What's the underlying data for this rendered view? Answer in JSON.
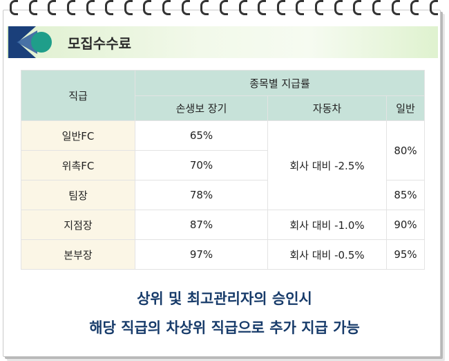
{
  "banner": {
    "title": "모집수수료"
  },
  "table": {
    "header": {
      "position": "직급",
      "group": "종목별 지급률",
      "col_life": "손생보 장기",
      "col_auto": "자동차",
      "col_general": "일반"
    },
    "rows": [
      {
        "position": "일반FC",
        "life": "65%"
      },
      {
        "position": "위촉FC",
        "life": "70%"
      },
      {
        "position": "팀장",
        "life": "78%"
      },
      {
        "position": "지점장",
        "life": "87%"
      },
      {
        "position": "본부장",
        "life": "97%"
      }
    ],
    "auto_merged_1_3": "회사 대비 -2.5%",
    "auto_row4": "회사 대비 -1.0%",
    "auto_row5": "회사 대비 -0.5%",
    "general_merged_1_2": "80%",
    "general_row3": "85%",
    "general_row4": "90%",
    "general_row5": "95%"
  },
  "notes": {
    "line1": "상위 및 최고관리자의 승인시",
    "line2": "해당 직급의 차상위 직급으로 추가 지급 가능"
  },
  "colors": {
    "header_bg": "#c7e2d9",
    "category_bg": "#fbf6e6",
    "note_text": "#173b6a",
    "logo_teal": "#1f9e8a"
  }
}
